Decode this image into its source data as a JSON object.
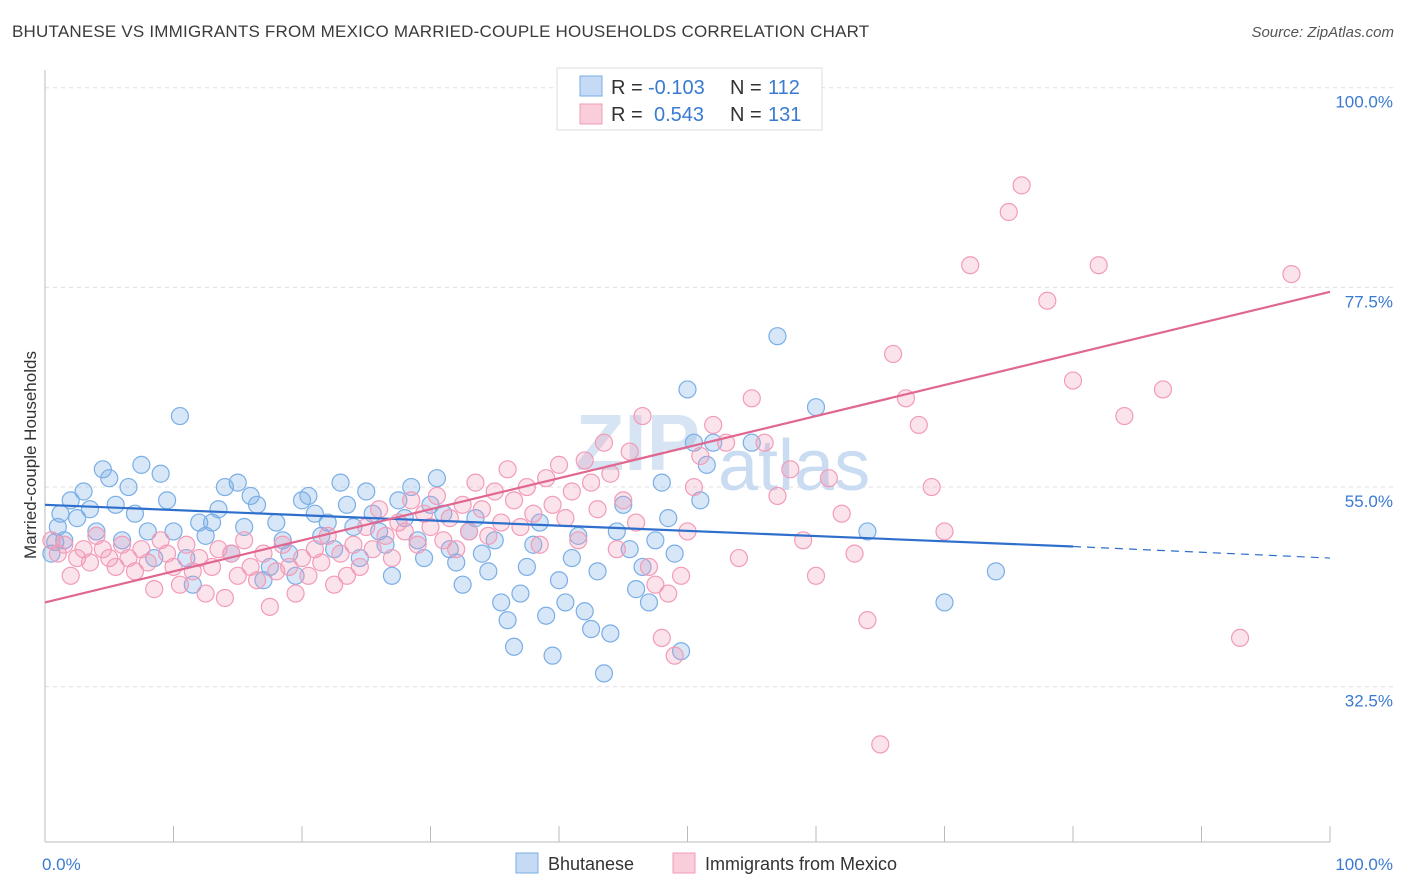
{
  "title": "BHUTANESE VS IMMIGRANTS FROM MEXICO MARRIED-COUPLE HOUSEHOLDS CORRELATION CHART",
  "source": "Source: ZipAtlas.com",
  "watermark": {
    "zip": "ZIP",
    "atlas": "atlas"
  },
  "chart_data": {
    "type": "scatter",
    "title": "BHUTANESE VS IMMIGRANTS FROM MEXICO MARRIED-COUPLE HOUSEHOLDS CORRELATION CHART",
    "xlabel": "",
    "ylabel": "Married-couple Households",
    "xlim": [
      0,
      100
    ],
    "ylim": [
      15,
      102
    ],
    "x_tick_labels": [
      "0.0%",
      "100.0%"
    ],
    "y_ticks": [
      {
        "value": 32.5,
        "label": "32.5%"
      },
      {
        "value": 55.0,
        "label": "55.0%"
      },
      {
        "value": 77.5,
        "label": "77.5%"
      },
      {
        "value": 100.0,
        "label": "100.0%"
      }
    ],
    "grid": true,
    "legend_placement": "top-center",
    "stats": [
      {
        "r_label": "R =",
        "r": "-0.103",
        "n_label": "N =",
        "n": "112"
      },
      {
        "r_label": "R =",
        "r": "0.543",
        "n_label": "N =",
        "n": "131"
      }
    ],
    "series": [
      {
        "name": "Bhutanese",
        "color": "#7aaee6",
        "line_color": "#2f6fcc",
        "trend": {
          "x0": 0,
          "y0": 53.0,
          "x1": 80,
          "y1": 48.3,
          "dash_to_x": 100,
          "dash_to_y": 47.0
        },
        "points": [
          [
            0.5,
            47.5
          ],
          [
            0.8,
            48.8
          ],
          [
            1.0,
            50.5
          ],
          [
            1.2,
            52.0
          ],
          [
            1.5,
            49.0
          ],
          [
            2.0,
            53.5
          ],
          [
            2.5,
            51.5
          ],
          [
            3.0,
            54.5
          ],
          [
            3.5,
            52.5
          ],
          [
            4.0,
            50.0
          ],
          [
            4.5,
            57.0
          ],
          [
            5.0,
            56.0
          ],
          [
            5.5,
            53.0
          ],
          [
            6.0,
            49.0
          ],
          [
            6.5,
            55.0
          ],
          [
            7.0,
            52.0
          ],
          [
            7.5,
            57.5
          ],
          [
            8.0,
            50.0
          ],
          [
            8.5,
            47.0
          ],
          [
            9.0,
            56.5
          ],
          [
            9.5,
            53.5
          ],
          [
            10.0,
            50.0
          ],
          [
            10.5,
            63.0
          ],
          [
            11.0,
            47.0
          ],
          [
            11.5,
            44.0
          ],
          [
            12.0,
            51.0
          ],
          [
            12.5,
            49.5
          ],
          [
            13.0,
            51.0
          ],
          [
            13.5,
            52.5
          ],
          [
            14.0,
            55.0
          ],
          [
            14.5,
            47.5
          ],
          [
            15.0,
            55.5
          ],
          [
            15.5,
            50.5
          ],
          [
            16.0,
            54.0
          ],
          [
            16.5,
            53.0
          ],
          [
            17.0,
            44.5
          ],
          [
            17.5,
            46.0
          ],
          [
            18.0,
            51.0
          ],
          [
            18.5,
            49.0
          ],
          [
            19.0,
            47.5
          ],
          [
            19.5,
            45.0
          ],
          [
            20.0,
            53.5
          ],
          [
            20.5,
            54.0
          ],
          [
            21.0,
            52.0
          ],
          [
            21.5,
            49.5
          ],
          [
            22.0,
            51.0
          ],
          [
            22.5,
            48.0
          ],
          [
            23.0,
            55.5
          ],
          [
            23.5,
            53.0
          ],
          [
            24.0,
            50.5
          ],
          [
            24.5,
            47.0
          ],
          [
            25.0,
            54.5
          ],
          [
            25.5,
            52.0
          ],
          [
            26.0,
            50.0
          ],
          [
            26.5,
            48.5
          ],
          [
            27.0,
            45.0
          ],
          [
            27.5,
            53.5
          ],
          [
            28.0,
            51.5
          ],
          [
            28.5,
            55.0
          ],
          [
            29.0,
            49.0
          ],
          [
            29.5,
            47.0
          ],
          [
            30.0,
            53.0
          ],
          [
            30.5,
            56.0
          ],
          [
            31.0,
            52.0
          ],
          [
            31.5,
            48.0
          ],
          [
            32.0,
            46.5
          ],
          [
            32.5,
            44.0
          ],
          [
            33.0,
            50.0
          ],
          [
            33.5,
            51.5
          ],
          [
            34.0,
            47.5
          ],
          [
            34.5,
            45.5
          ],
          [
            35.0,
            49.0
          ],
          [
            35.5,
            42.0
          ],
          [
            36.0,
            40.0
          ],
          [
            36.5,
            37.0
          ],
          [
            37.0,
            43.0
          ],
          [
            37.5,
            46.0
          ],
          [
            38.0,
            48.5
          ],
          [
            38.5,
            51.0
          ],
          [
            39.0,
            40.5
          ],
          [
            39.5,
            36.0
          ],
          [
            40.0,
            44.5
          ],
          [
            40.5,
            42.0
          ],
          [
            41.0,
            47.0
          ],
          [
            41.5,
            49.5
          ],
          [
            42.0,
            41.0
          ],
          [
            42.5,
            39.0
          ],
          [
            43.0,
            45.5
          ],
          [
            43.5,
            34.0
          ],
          [
            44.0,
            38.5
          ],
          [
            44.5,
            50.0
          ],
          [
            45.0,
            53.0
          ],
          [
            45.5,
            48.0
          ],
          [
            46.0,
            43.5
          ],
          [
            46.5,
            46.0
          ],
          [
            47.0,
            42.0
          ],
          [
            47.5,
            49.0
          ],
          [
            48.0,
            55.5
          ],
          [
            48.5,
            51.5
          ],
          [
            49.0,
            47.5
          ],
          [
            49.5,
            36.5
          ],
          [
            50.0,
            66.0
          ],
          [
            50.5,
            60.0
          ],
          [
            51.0,
            53.5
          ],
          [
            51.5,
            57.5
          ],
          [
            52.0,
            60.0
          ],
          [
            55.0,
            60.0
          ],
          [
            57.0,
            72.0
          ],
          [
            60.0,
            64.0
          ],
          [
            64.0,
            50.0
          ],
          [
            70.0,
            42.0
          ],
          [
            74.0,
            45.5
          ]
        ]
      },
      {
        "name": "Immigrants from Mexico",
        "color": "#f29bb8",
        "line_color": "#e0678f",
        "trend": {
          "x0": 0,
          "y0": 42.0,
          "x1": 100,
          "y1": 77.0
        },
        "points": [
          [
            0.5,
            49.0
          ],
          [
            1.0,
            47.5
          ],
          [
            1.5,
            48.5
          ],
          [
            2.0,
            45.0
          ],
          [
            2.5,
            47.0
          ],
          [
            3.0,
            48.0
          ],
          [
            3.5,
            46.5
          ],
          [
            4.0,
            49.5
          ],
          [
            4.5,
            48.0
          ],
          [
            5.0,
            47.0
          ],
          [
            5.5,
            46.0
          ],
          [
            6.0,
            48.5
          ],
          [
            6.5,
            47.0
          ],
          [
            7.0,
            45.5
          ],
          [
            7.5,
            48.0
          ],
          [
            8.0,
            46.5
          ],
          [
            8.5,
            43.5
          ],
          [
            9.0,
            49.0
          ],
          [
            9.5,
            47.5
          ],
          [
            10.0,
            46.0
          ],
          [
            10.5,
            44.0
          ],
          [
            11.0,
            48.5
          ],
          [
            11.5,
            45.5
          ],
          [
            12.0,
            47.0
          ],
          [
            12.5,
            43.0
          ],
          [
            13.0,
            46.0
          ],
          [
            13.5,
            48.0
          ],
          [
            14.0,
            42.5
          ],
          [
            14.5,
            47.5
          ],
          [
            15.0,
            45.0
          ],
          [
            15.5,
            49.0
          ],
          [
            16.0,
            46.0
          ],
          [
            16.5,
            44.5
          ],
          [
            17.0,
            47.5
          ],
          [
            17.5,
            41.5
          ],
          [
            18.0,
            45.5
          ],
          [
            18.5,
            48.5
          ],
          [
            19.0,
            46.0
          ],
          [
            19.5,
            43.0
          ],
          [
            20.0,
            47.0
          ],
          [
            20.5,
            45.0
          ],
          [
            21.0,
            48.0
          ],
          [
            21.5,
            46.5
          ],
          [
            22.0,
            49.5
          ],
          [
            22.5,
            44.0
          ],
          [
            23.0,
            47.5
          ],
          [
            23.5,
            45.0
          ],
          [
            24.0,
            48.5
          ],
          [
            24.5,
            46.0
          ],
          [
            25.0,
            50.5
          ],
          [
            25.5,
            48.0
          ],
          [
            26.0,
            52.5
          ],
          [
            26.5,
            49.5
          ],
          [
            27.0,
            47.0
          ],
          [
            27.5,
            51.0
          ],
          [
            28.0,
            50.0
          ],
          [
            28.5,
            53.5
          ],
          [
            29.0,
            48.5
          ],
          [
            29.5,
            52.0
          ],
          [
            30.0,
            50.5
          ],
          [
            30.5,
            54.0
          ],
          [
            31.0,
            49.0
          ],
          [
            31.5,
            51.5
          ],
          [
            32.0,
            48.0
          ],
          [
            32.5,
            53.0
          ],
          [
            33.0,
            50.0
          ],
          [
            33.5,
            55.5
          ],
          [
            34.0,
            52.5
          ],
          [
            34.5,
            49.5
          ],
          [
            35.0,
            54.5
          ],
          [
            35.5,
            51.0
          ],
          [
            36.0,
            57.0
          ],
          [
            36.5,
            53.5
          ],
          [
            37.0,
            50.5
          ],
          [
            37.5,
            55.0
          ],
          [
            38.0,
            52.0
          ],
          [
            38.5,
            48.5
          ],
          [
            39.0,
            56.0
          ],
          [
            39.5,
            53.0
          ],
          [
            40.0,
            57.5
          ],
          [
            40.5,
            51.5
          ],
          [
            41.0,
            54.5
          ],
          [
            41.5,
            49.0
          ],
          [
            42.0,
            58.0
          ],
          [
            42.5,
            55.5
          ],
          [
            43.0,
            52.5
          ],
          [
            43.5,
            60.0
          ],
          [
            44.0,
            56.5
          ],
          [
            44.5,
            48.0
          ],
          [
            45.0,
            53.5
          ],
          [
            45.5,
            59.0
          ],
          [
            46.0,
            51.0
          ],
          [
            46.5,
            63.0
          ],
          [
            47.0,
            46.0
          ],
          [
            47.5,
            44.0
          ],
          [
            48.0,
            38.0
          ],
          [
            48.5,
            43.0
          ],
          [
            49.0,
            36.0
          ],
          [
            49.5,
            45.0
          ],
          [
            50.0,
            50.0
          ],
          [
            50.5,
            55.0
          ],
          [
            51.0,
            58.5
          ],
          [
            52.0,
            62.0
          ],
          [
            53.0,
            60.0
          ],
          [
            54.0,
            47.0
          ],
          [
            55.0,
            65.0
          ],
          [
            56.0,
            60.0
          ],
          [
            57.0,
            54.0
          ],
          [
            58.0,
            57.0
          ],
          [
            59.0,
            49.0
          ],
          [
            60.0,
            45.0
          ],
          [
            61.0,
            56.0
          ],
          [
            62.0,
            52.0
          ],
          [
            63.0,
            47.5
          ],
          [
            64.0,
            40.0
          ],
          [
            65.0,
            26.0
          ],
          [
            66.0,
            70.0
          ],
          [
            67.0,
            65.0
          ],
          [
            68.0,
            62.0
          ],
          [
            69.0,
            55.0
          ],
          [
            70.0,
            50.0
          ],
          [
            72.0,
            80.0
          ],
          [
            75.0,
            86.0
          ],
          [
            76.0,
            89.0
          ],
          [
            78.0,
            76.0
          ],
          [
            80.0,
            67.0
          ],
          [
            82.0,
            80.0
          ],
          [
            84.0,
            63.0
          ],
          [
            87.0,
            66.0
          ],
          [
            93.0,
            38.0
          ],
          [
            97.0,
            79.0
          ]
        ]
      }
    ]
  },
  "bottom_legend": [
    "Bhutanese",
    "Immigrants from Mexico"
  ]
}
